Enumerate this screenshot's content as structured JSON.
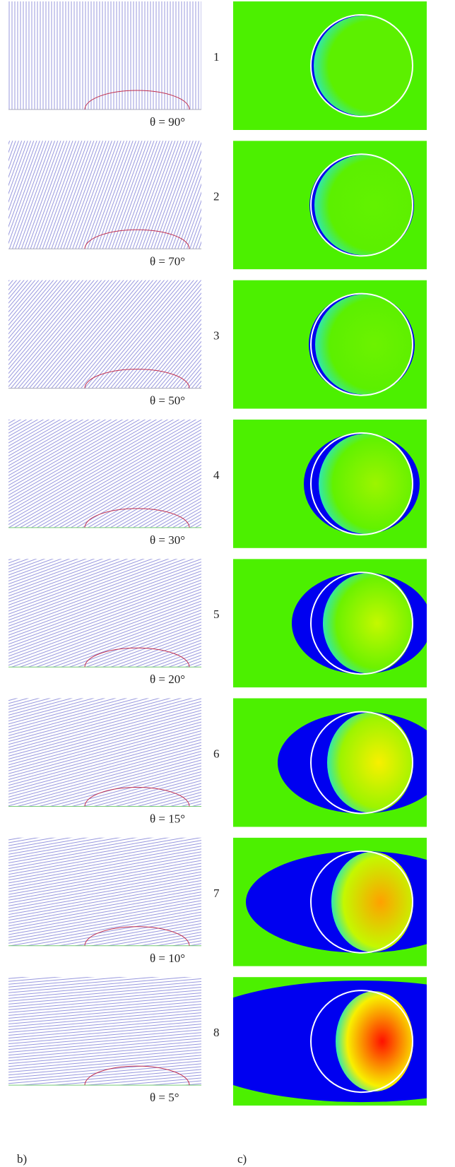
{
  "figure": {
    "rows": [
      {
        "index": "1",
        "angle_label": "θ = 90°"
      },
      {
        "index": "2",
        "angle_label": "θ = 70°"
      },
      {
        "index": "3",
        "angle_label": "θ = 50°"
      },
      {
        "index": "4",
        "angle_label": "θ = 30°"
      },
      {
        "index": "5",
        "angle_label": "θ = 20°"
      },
      {
        "index": "6",
        "angle_label": "θ = 15°"
      },
      {
        "index": "7",
        "angle_label": "θ = 10°"
      },
      {
        "index": "8",
        "angle_label": "θ = 5°"
      }
    ],
    "panel_labels": {
      "left": "b)",
      "right": "c)"
    }
  }
}
